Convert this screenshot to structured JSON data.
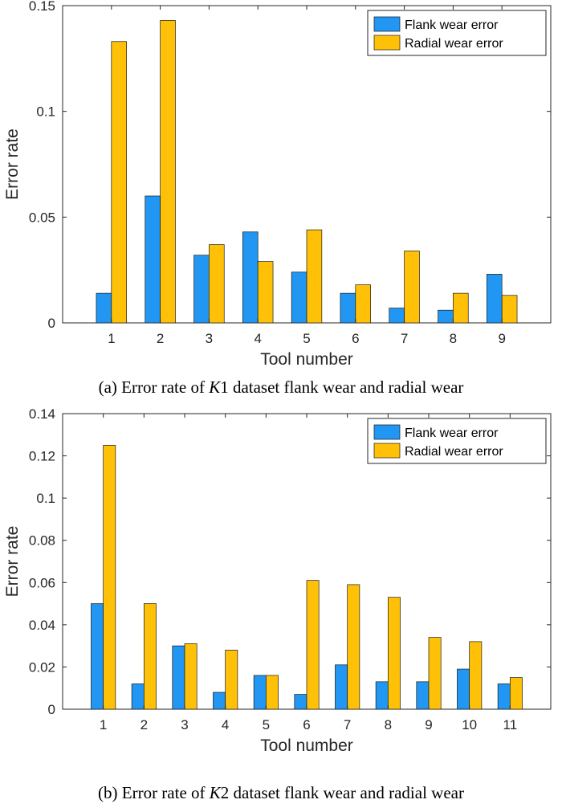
{
  "chart_data": [
    {
      "type": "bar",
      "categories": [
        "1",
        "2",
        "3",
        "4",
        "5",
        "6",
        "7",
        "8",
        "9"
      ],
      "series": [
        {
          "name": "Flank wear error",
          "color": "#2196F3",
          "values": [
            0.014,
            0.06,
            0.032,
            0.043,
            0.024,
            0.014,
            0.007,
            0.006,
            0.023
          ]
        },
        {
          "name": "Radial wear error",
          "color": "#FFC107",
          "values": [
            0.133,
            0.143,
            0.037,
            0.029,
            0.044,
            0.018,
            0.034,
            0.014,
            0.013
          ]
        }
      ],
      "xlabel": "Tool number",
      "ylabel": "Error rate",
      "ylim": [
        0,
        0.15
      ],
      "yticks": [
        "0",
        "0.05",
        "0.1",
        "0.15"
      ],
      "legend": "top-right",
      "grid": false,
      "caption": {
        "prefix": "(a) Error rate of ",
        "var": "K",
        "suffix": "1 dataset flank wear and radial wear"
      }
    },
    {
      "type": "bar",
      "categories": [
        "1",
        "2",
        "3",
        "4",
        "5",
        "6",
        "7",
        "8",
        "9",
        "10",
        "11"
      ],
      "series": [
        {
          "name": "Flank wear error",
          "color": "#2196F3",
          "values": [
            0.05,
            0.012,
            0.03,
            0.008,
            0.016,
            0.007,
            0.021,
            0.013,
            0.013,
            0.019,
            0.012
          ]
        },
        {
          "name": "Radial wear error",
          "color": "#FFC107",
          "values": [
            0.125,
            0.05,
            0.031,
            0.028,
            0.016,
            0.061,
            0.059,
            0.053,
            0.034,
            0.032,
            0.015
          ]
        }
      ],
      "xlabel": "Tool number",
      "ylabel": "Error rate",
      "ylim": [
        0,
        0.14
      ],
      "yticks": [
        "0",
        "0.02",
        "0.04",
        "0.06",
        "0.08",
        "0.1",
        "0.12",
        "0.14"
      ],
      "legend": "top-right",
      "grid": false,
      "caption": {
        "prefix": "(b) Error rate of ",
        "var": "K",
        "suffix": "2 dataset flank wear and radial wear"
      }
    }
  ]
}
